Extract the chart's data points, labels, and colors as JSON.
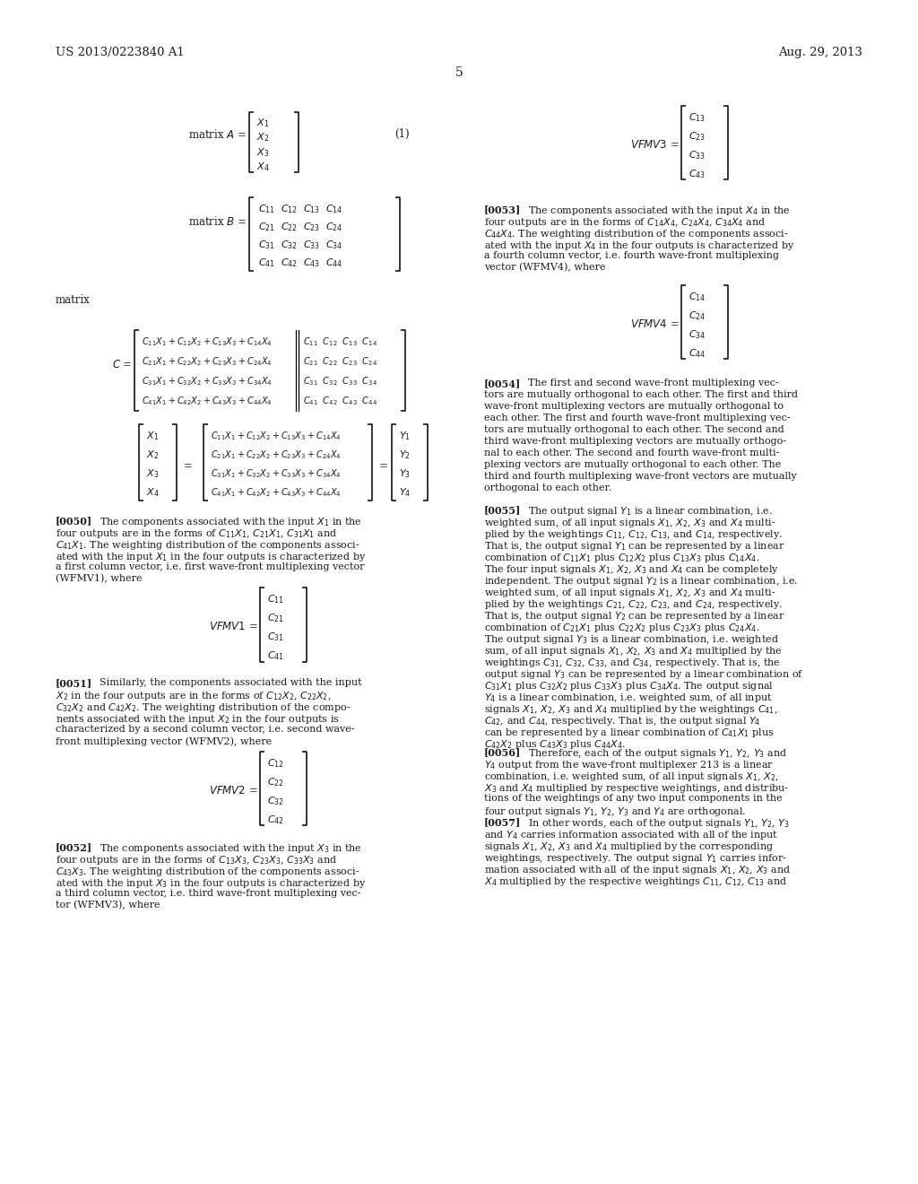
{
  "bg_color": "#ffffff",
  "header_left": "US 2013/0223840 A1",
  "header_right": "Aug. 29, 2013",
  "page_num": "5",
  "font_color": "#1a1a1a",
  "header_fontsize": 9.5,
  "body_fontsize": 8.0,
  "math_fontsize": 8.5,
  "label_fontsize": 8.0,
  "bracket_lw": 1.1
}
